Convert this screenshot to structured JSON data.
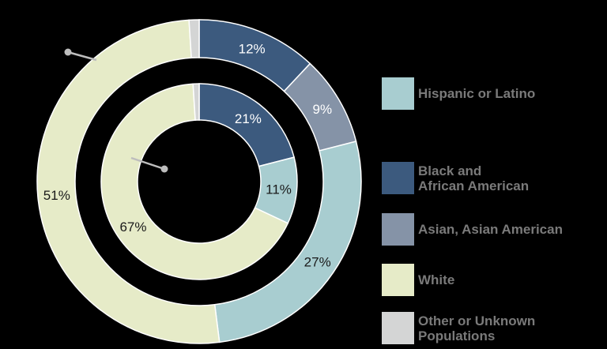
{
  "chart_data": {
    "type": "pie",
    "subtype": "nested-donut",
    "title": "",
    "legend_position": "right",
    "categories": [
      "Hispanic or Latino",
      "Black and African American",
      "Asian, Asian American",
      "White",
      "Other or Unknown Populations"
    ],
    "colors": {
      "Hispanic or Latino": "#a8cdd0",
      "Black and African American": "#3c5a7e",
      "Asian, Asian American": "#8593a7",
      "White": "#e6ebc8",
      "Other or Unknown Populations": "#d4d5d5"
    },
    "series": [
      {
        "name": "outer-ring",
        "ring": "outer",
        "slices": [
          {
            "category": "Black and African American",
            "value": 12,
            "label": "12%"
          },
          {
            "category": "Asian, Asian American",
            "value": 9,
            "label": "9%"
          },
          {
            "category": "Hispanic or Latino",
            "value": 27,
            "label": "27%"
          },
          {
            "category": "White",
            "value": 51,
            "label": "51%"
          },
          {
            "category": "Other or Unknown Populations",
            "value": 1,
            "label": ""
          }
        ]
      },
      {
        "name": "inner-ring",
        "ring": "inner",
        "slices": [
          {
            "category": "Black and African American",
            "value": 21,
            "label": "21%"
          },
          {
            "category": "Hispanic or Latino",
            "value": 11,
            "label": "11%"
          },
          {
            "category": "White",
            "value": 67,
            "label": "67%"
          },
          {
            "category": "Other or Unknown Populations",
            "value": 1,
            "label": ""
          }
        ]
      }
    ]
  },
  "legend": {
    "items": [
      {
        "label": "Hispanic or Latino",
        "color": "#a8cdd0"
      },
      {
        "label": "Black and\nAfrican American",
        "color": "#3c5a7e"
      },
      {
        "label": "Asian, Asian American",
        "color": "#8593a7"
      },
      {
        "label": "White",
        "color": "#e6ebc8"
      },
      {
        "label": "Other or Unknown\nPopulations",
        "color": "#d4d5d5"
      }
    ]
  },
  "style": {
    "background": "#000000",
    "legend_text_color": "#7a7a7a",
    "leader_line_color": "#bdbdbd",
    "label_dark": "#1a1a1a",
    "label_light": "#ffffff"
  }
}
